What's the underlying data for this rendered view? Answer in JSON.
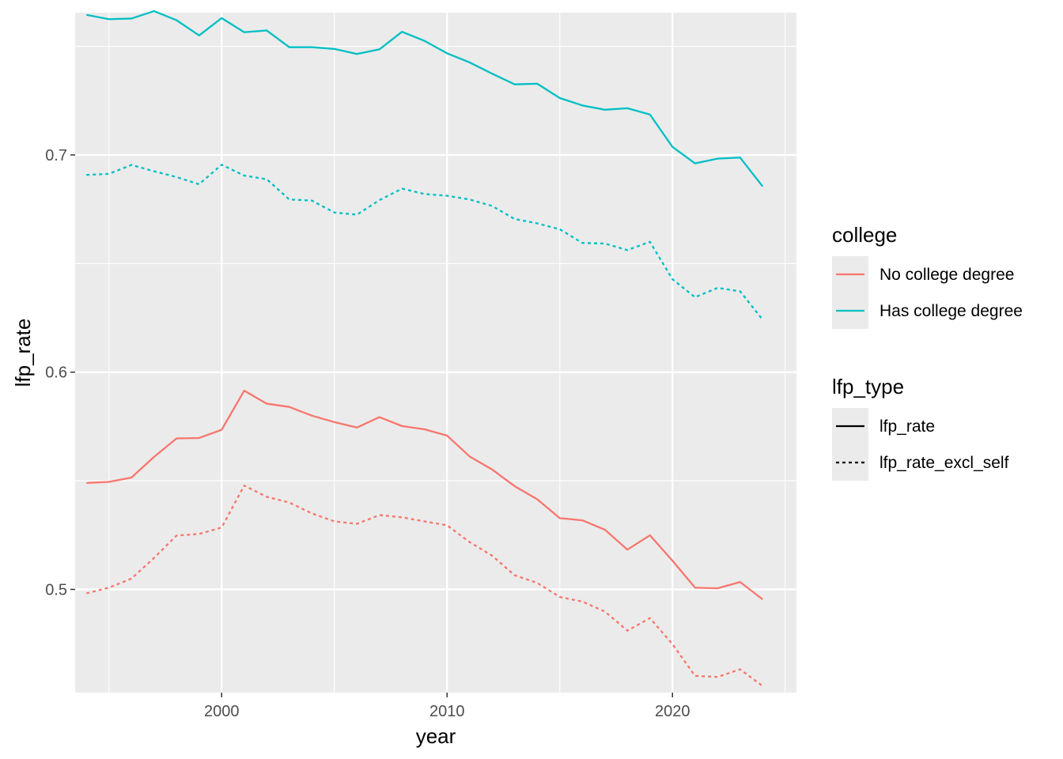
{
  "chart_data": {
    "type": "line",
    "xlabel": "year",
    "ylabel": "lfp_rate",
    "xlim": [
      1993.5,
      2025.5
    ],
    "ylim": [
      0.4525,
      0.7655
    ],
    "x_ticks": [
      2000,
      2010,
      2020
    ],
    "x_minor_ticks": [
      1995,
      2005,
      2015,
      2025
    ],
    "y_ticks": [
      0.5,
      0.6,
      0.7
    ],
    "y_tick_labels": [
      "0.5",
      "0.6",
      "0.7"
    ],
    "y_minor_ticks": [
      0.45,
      0.55,
      0.65,
      0.75
    ],
    "grid": true,
    "legend_position": "right",
    "x": [
      1994,
      1995,
      1996,
      1997,
      1998,
      1999,
      2000,
      2001,
      2002,
      2003,
      2004,
      2005,
      2006,
      2007,
      2008,
      2009,
      2010,
      2011,
      2012,
      2013,
      2014,
      2015,
      2016,
      2017,
      2018,
      2019,
      2020,
      2021,
      2022,
      2023,
      2024
    ],
    "series": [
      {
        "college": "No college degree",
        "lfp_type": "lfp_rate",
        "color": "#F8766D",
        "dash": "solid",
        "values": [
          0.549,
          0.5495,
          0.5515,
          0.561,
          0.5695,
          0.5697,
          0.5735,
          0.5915,
          0.5855,
          0.584,
          0.58,
          0.577,
          0.5745,
          0.5793,
          0.5752,
          0.5737,
          0.5708,
          0.5612,
          0.5552,
          0.5475,
          0.5415,
          0.5328,
          0.5318,
          0.5275,
          0.5183,
          0.5249,
          0.5132,
          0.5008,
          0.5005,
          0.5034,
          0.4954
        ]
      },
      {
        "college": "No college degree",
        "lfp_type": "lfp_rate_excl_self",
        "color": "#F8766D",
        "dash": "dashed",
        "values": [
          0.4982,
          0.5008,
          0.505,
          0.5145,
          0.5248,
          0.5255,
          0.5285,
          0.5478,
          0.5426,
          0.54,
          0.535,
          0.5313,
          0.5302,
          0.5342,
          0.5332,
          0.5313,
          0.5295,
          0.5218,
          0.5155,
          0.5065,
          0.503,
          0.4965,
          0.4944,
          0.4898,
          0.481,
          0.4868,
          0.4748,
          0.4602,
          0.4597,
          0.4632,
          0.4555
        ]
      },
      {
        "college": "Has college degree",
        "lfp_type": "lfp_rate",
        "color": "#00BFC4",
        "dash": "solid",
        "values": [
          0.7645,
          0.7625,
          0.7628,
          0.7662,
          0.762,
          0.755,
          0.763,
          0.7565,
          0.7573,
          0.7496,
          0.7496,
          0.7488,
          0.7465,
          0.7486,
          0.7567,
          0.7525,
          0.7468,
          0.7426,
          0.7374,
          0.7325,
          0.7328,
          0.7262,
          0.7228,
          0.7208,
          0.7215,
          0.7186,
          0.7037,
          0.6961,
          0.6983,
          0.6988,
          0.6855
        ]
      },
      {
        "college": "Has college degree",
        "lfp_type": "lfp_rate_excl_self",
        "color": "#00BFC4",
        "dash": "dashed",
        "values": [
          0.6908,
          0.6913,
          0.6954,
          0.6925,
          0.6898,
          0.6865,
          0.6955,
          0.6905,
          0.6888,
          0.6795,
          0.679,
          0.6735,
          0.6725,
          0.6792,
          0.6845,
          0.682,
          0.6812,
          0.6795,
          0.6765,
          0.6705,
          0.6685,
          0.6658,
          0.6595,
          0.6592,
          0.6562,
          0.66,
          0.6428,
          0.6345,
          0.6388,
          0.6372,
          0.6242
        ]
      }
    ],
    "legends": [
      {
        "title": "college",
        "entries": [
          {
            "label": "No college degree",
            "color": "#F8766D",
            "dash": "solid"
          },
          {
            "label": "Has college degree",
            "color": "#00BFC4",
            "dash": "solid"
          }
        ]
      },
      {
        "title": "lfp_type",
        "entries": [
          {
            "label": "lfp_rate",
            "color": "#000000",
            "dash": "solid"
          },
          {
            "label": "lfp_rate_excl_self",
            "color": "#000000",
            "dash": "dashed"
          }
        ]
      }
    ]
  }
}
